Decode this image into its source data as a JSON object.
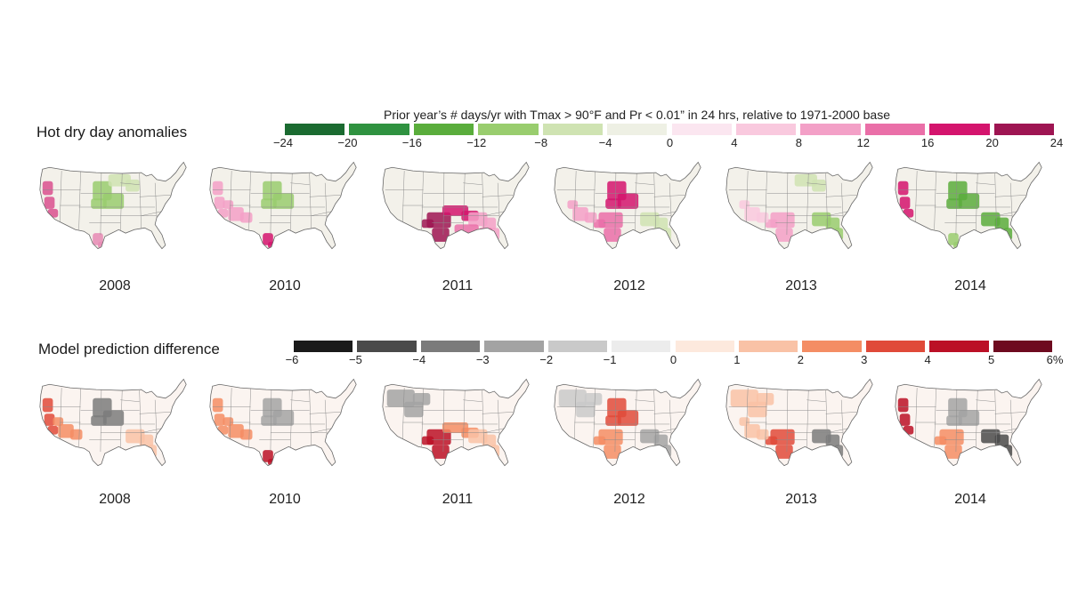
{
  "top_panel": {
    "title": "Hot dry day anomalies",
    "legend_heading": "Prior year’s # days/yr with Tmax > 90°F and Pr < 0.01” in 24 hrs, relative to 1971-2000 base",
    "legend_colors": [
      "#1b6b31",
      "#2f9240",
      "#5aad3c",
      "#99cd6e",
      "#cfe3b2",
      "#eef0e4",
      "#fbe6f0",
      "#f9c9de",
      "#f3a0c7",
      "#ea6fa8",
      "#d4146d",
      "#9e1552"
    ],
    "legend_ticks": [
      "−24",
      "−20",
      "−16",
      "−12",
      "−8",
      "−4",
      "0",
      "4",
      "8",
      "12",
      "16",
      "20",
      "24"
    ],
    "maps": [
      {
        "year": "2008",
        "highlights": [
          {
            "region": "west-coast",
            "color": "#d9508e"
          },
          {
            "region": "south-texas",
            "color": "#e68ab4"
          },
          {
            "region": "central-plains",
            "color": "#99cd6e"
          },
          {
            "region": "upper-midwest",
            "color": "#cfe3b2"
          }
        ]
      },
      {
        "year": "2010",
        "highlights": [
          {
            "region": "west-coast",
            "color": "#f3a0c7"
          },
          {
            "region": "southwest",
            "color": "#f3a0c7"
          },
          {
            "region": "south-texas",
            "color": "#d4146d"
          },
          {
            "region": "central-plains",
            "color": "#99cd6e"
          }
        ]
      },
      {
        "year": "2011",
        "highlights": [
          {
            "region": "texas",
            "color": "#9e1552"
          },
          {
            "region": "south-plains",
            "color": "#d4146d"
          },
          {
            "region": "southeast",
            "color": "#f3a0c7"
          },
          {
            "region": "gulf-coast",
            "color": "#ea6fa8"
          }
        ]
      },
      {
        "year": "2012",
        "highlights": [
          {
            "region": "central-plains",
            "color": "#d4146d"
          },
          {
            "region": "texas",
            "color": "#ea6fa8"
          },
          {
            "region": "southwest",
            "color": "#f3a0c7"
          },
          {
            "region": "southeast",
            "color": "#cfe3b2"
          }
        ]
      },
      {
        "year": "2013",
        "highlights": [
          {
            "region": "southeast",
            "color": "#99cd6e"
          },
          {
            "region": "texas",
            "color": "#f3a0c7"
          },
          {
            "region": "upper-midwest",
            "color": "#cfe3b2"
          },
          {
            "region": "southwest",
            "color": "#f9c9de"
          }
        ]
      },
      {
        "year": "2014",
        "highlights": [
          {
            "region": "west-coast",
            "color": "#d4146d"
          },
          {
            "region": "central-plains",
            "color": "#5aad3c"
          },
          {
            "region": "southeast",
            "color": "#5aad3c"
          },
          {
            "region": "south-texas",
            "color": "#99cd6e"
          }
        ]
      }
    ]
  },
  "bottom_panel": {
    "title": "Model prediction difference",
    "legend_colors": [
      "#1a1a1a",
      "#4a4a4a",
      "#7b7b7b",
      "#a3a3a3",
      "#c9c9c9",
      "#ececec",
      "#fde9dd",
      "#f9c2a6",
      "#f48d64",
      "#e04a39",
      "#bb1026",
      "#6e0a1f"
    ],
    "legend_ticks": [
      "−6",
      "−5",
      "−4",
      "−3",
      "−2",
      "−1",
      "0",
      "1",
      "2",
      "3",
      "4",
      "5",
      "6%"
    ],
    "maps": [
      {
        "year": "2008",
        "highlights": [
          {
            "region": "west-coast",
            "color": "#e04a39"
          },
          {
            "region": "southwest",
            "color": "#f48d64"
          },
          {
            "region": "central-plains",
            "color": "#7b7b7b"
          },
          {
            "region": "southeast",
            "color": "#f9c2a6"
          }
        ]
      },
      {
        "year": "2010",
        "highlights": [
          {
            "region": "west-coast",
            "color": "#f48d64"
          },
          {
            "region": "southwest",
            "color": "#f48d64"
          },
          {
            "region": "south-texas",
            "color": "#bb1026"
          },
          {
            "region": "central-plains",
            "color": "#a3a3a3"
          }
        ]
      },
      {
        "year": "2011",
        "highlights": [
          {
            "region": "texas",
            "color": "#bb1026"
          },
          {
            "region": "north-west",
            "color": "#a3a3a3"
          },
          {
            "region": "south-plains",
            "color": "#f48d64"
          },
          {
            "region": "southeast",
            "color": "#f9c2a6"
          }
        ]
      },
      {
        "year": "2012",
        "highlights": [
          {
            "region": "central-plains",
            "color": "#e04a39"
          },
          {
            "region": "texas",
            "color": "#f48d64"
          },
          {
            "region": "north-west",
            "color": "#c9c9c9"
          },
          {
            "region": "southeast",
            "color": "#a3a3a3"
          }
        ]
      },
      {
        "year": "2013",
        "highlights": [
          {
            "region": "texas",
            "color": "#e04a39"
          },
          {
            "region": "southwest",
            "color": "#f9c2a6"
          },
          {
            "region": "southeast",
            "color": "#7b7b7b"
          },
          {
            "region": "north-west",
            "color": "#f9c2a6"
          }
        ]
      },
      {
        "year": "2014",
        "highlights": [
          {
            "region": "west-coast",
            "color": "#bb1026"
          },
          {
            "region": "southeast",
            "color": "#4a4a4a"
          },
          {
            "region": "texas",
            "color": "#f48d64"
          },
          {
            "region": "central-plains",
            "color": "#a3a3a3"
          }
        ]
      }
    ]
  }
}
